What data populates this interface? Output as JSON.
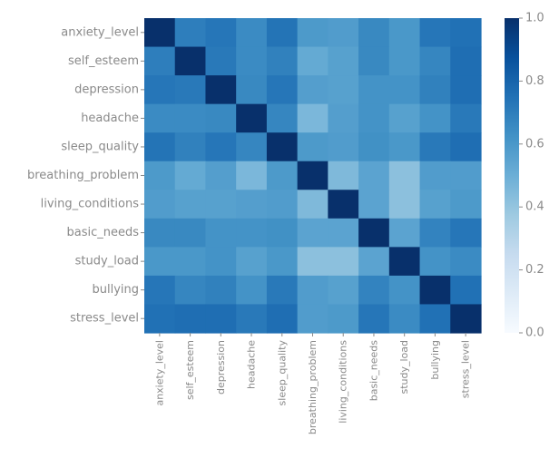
{
  "chart_data": {
    "type": "heatmap",
    "title": "",
    "xlabel": "",
    "ylabel": "",
    "variables": [
      "anxiety_level",
      "self_esteem",
      "depression",
      "headache",
      "sleep_quality",
      "breathing_problem",
      "living_conditions",
      "basic_needs",
      "study_load",
      "bullying",
      "stress_level"
    ],
    "values": [
      [
        1.0,
        0.7,
        0.73,
        0.65,
        0.74,
        0.59,
        0.58,
        0.66,
        0.6,
        0.73,
        0.75
      ],
      [
        0.7,
        1.0,
        0.72,
        0.65,
        0.69,
        0.52,
        0.56,
        0.66,
        0.6,
        0.67,
        0.76
      ],
      [
        0.73,
        0.72,
        1.0,
        0.66,
        0.73,
        0.57,
        0.56,
        0.62,
        0.62,
        0.69,
        0.76
      ],
      [
        0.65,
        0.65,
        0.66,
        1.0,
        0.67,
        0.46,
        0.57,
        0.62,
        0.56,
        0.62,
        0.72
      ],
      [
        0.74,
        0.69,
        0.73,
        0.67,
        1.0,
        0.59,
        0.58,
        0.63,
        0.6,
        0.72,
        0.76
      ],
      [
        0.59,
        0.52,
        0.57,
        0.46,
        0.59,
        1.0,
        0.45,
        0.55,
        0.42,
        0.58,
        0.58
      ],
      [
        0.58,
        0.56,
        0.56,
        0.57,
        0.58,
        0.45,
        1.0,
        0.55,
        0.42,
        0.56,
        0.59
      ],
      [
        0.66,
        0.66,
        0.62,
        0.62,
        0.63,
        0.55,
        0.55,
        1.0,
        0.55,
        0.68,
        0.73
      ],
      [
        0.6,
        0.6,
        0.62,
        0.56,
        0.6,
        0.42,
        0.42,
        0.55,
        1.0,
        0.62,
        0.65
      ],
      [
        0.73,
        0.67,
        0.69,
        0.62,
        0.72,
        0.58,
        0.56,
        0.68,
        0.62,
        1.0,
        0.75
      ],
      [
        0.75,
        0.76,
        0.76,
        0.72,
        0.76,
        0.58,
        0.59,
        0.73,
        0.65,
        0.75,
        1.0
      ]
    ],
    "colormap": "Blues",
    "colorbar": {
      "min": 0.0,
      "max": 1.0,
      "ticks": [
        "0.0",
        "0.2",
        "0.4",
        "0.6",
        "0.8",
        "1.0"
      ]
    }
  }
}
